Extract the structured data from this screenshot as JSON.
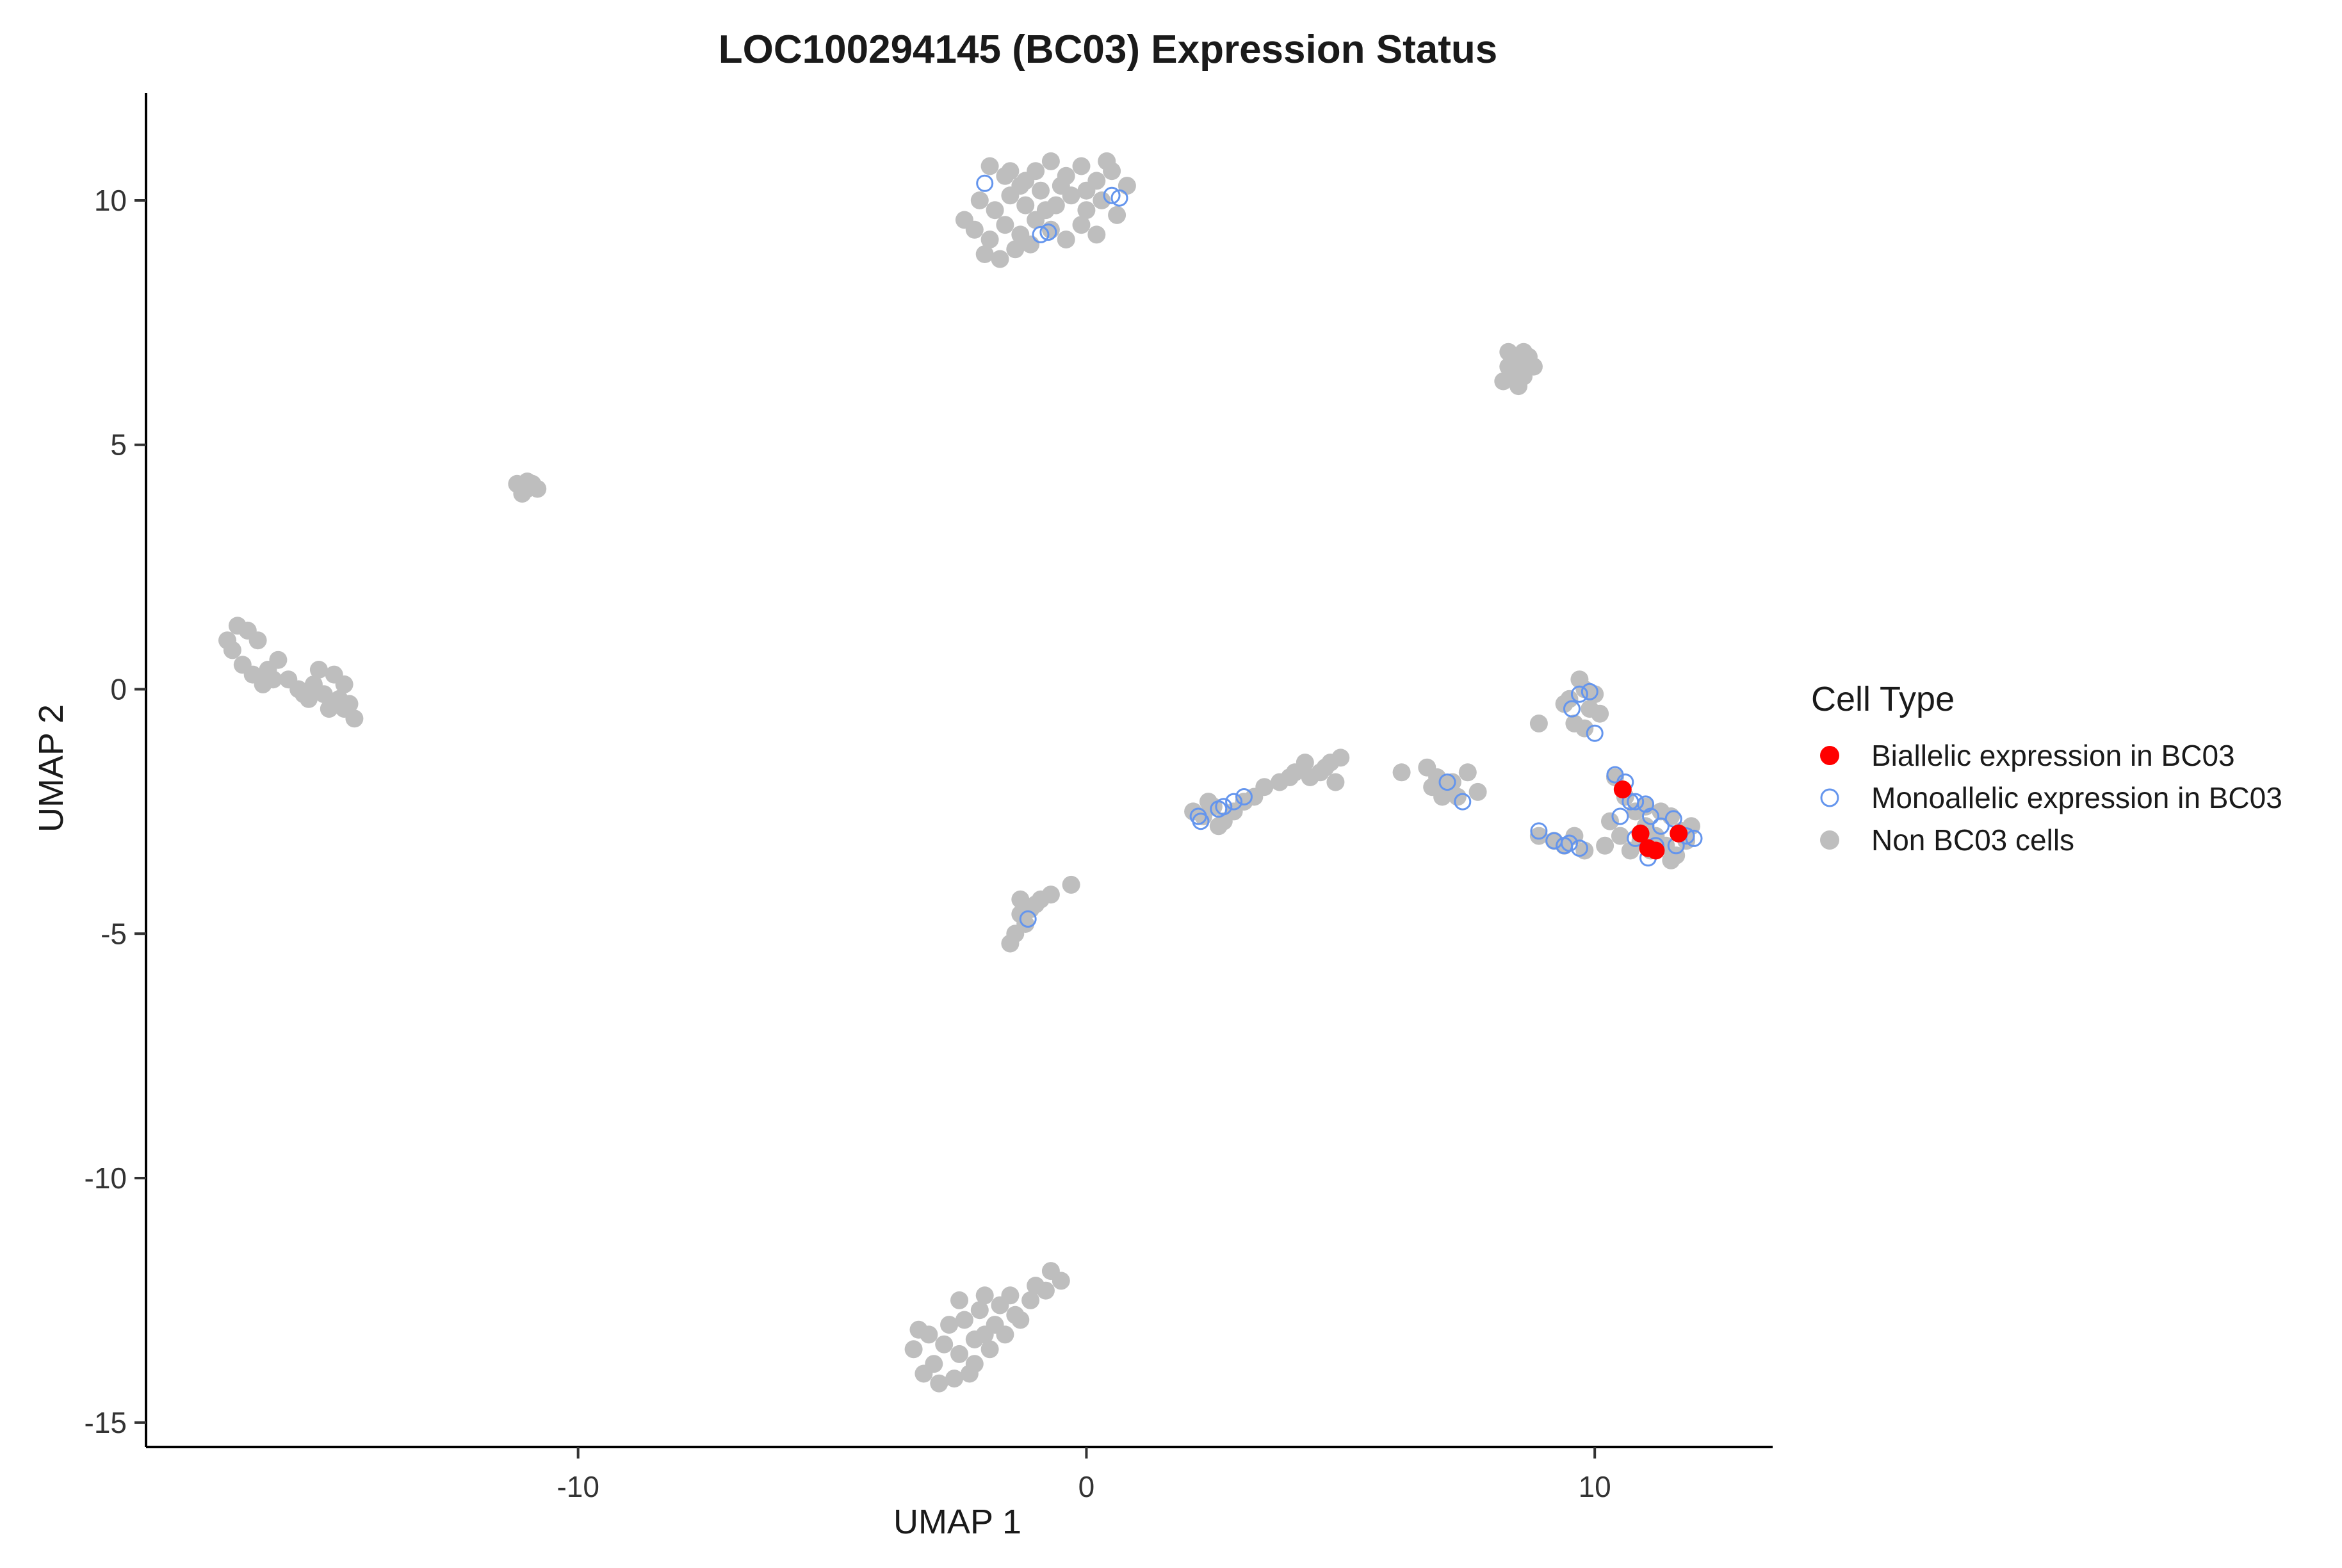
{
  "chart_data": {
    "type": "scatter",
    "title": "LOC100294145 (BC03) Expression Status",
    "xlabel": "UMAP 1",
    "ylabel": "UMAP 2",
    "xlim": [
      -18.5,
      13.5
    ],
    "ylim": [
      -15.5,
      12.2
    ],
    "xticks": [
      -10,
      0,
      10
    ],
    "xtick_labels": [
      "-10",
      "0",
      "10"
    ],
    "yticks": [
      -15,
      -10,
      -5,
      0,
      5,
      10
    ],
    "ytick_labels": [
      "-15",
      "-10",
      "-5",
      "0",
      "5",
      "10"
    ],
    "grid": false,
    "legend": {
      "title": "Cell Type",
      "placement": "right",
      "entries": [
        {
          "label": "Biallelic expression in BC03",
          "color": "#ff0000",
          "marker": "filled-circle"
        },
        {
          "label": "Monoallelic expression in BC03",
          "color": "#6495ed",
          "marker": "open-circle"
        },
        {
          "label": "Non BC03 cells",
          "color": "#bebebe",
          "marker": "filled-circle"
        }
      ]
    },
    "series": [
      {
        "name": "Non BC03 cells",
        "color": "#bebebe",
        "marker": "filled-circle",
        "points": [
          [
            -1.9,
            10.7
          ],
          [
            -1.6,
            10.5
          ],
          [
            -1.3,
            10.3
          ],
          [
            -1.0,
            10.6
          ],
          [
            -0.7,
            10.8
          ],
          [
            -0.4,
            10.5
          ],
          [
            -0.1,
            10.7
          ],
          [
            0.2,
            10.4
          ],
          [
            0.5,
            10.6
          ],
          [
            0.8,
            10.3
          ],
          [
            -2.1,
            10.0
          ],
          [
            -1.8,
            9.8
          ],
          [
            -1.5,
            10.1
          ],
          [
            -1.2,
            9.9
          ],
          [
            -0.9,
            10.2
          ],
          [
            -0.6,
            9.9
          ],
          [
            -0.3,
            10.1
          ],
          [
            0.0,
            9.8
          ],
          [
            0.3,
            10.0
          ],
          [
            0.6,
            9.7
          ],
          [
            -2.2,
            9.4
          ],
          [
            -1.9,
            9.2
          ],
          [
            -1.6,
            9.5
          ],
          [
            -1.3,
            9.3
          ],
          [
            -1.0,
            9.6
          ],
          [
            -0.7,
            9.4
          ],
          [
            -0.4,
            9.2
          ],
          [
            -0.1,
            9.5
          ],
          [
            0.2,
            9.3
          ],
          [
            -2.0,
            8.9
          ],
          [
            -1.7,
            8.8
          ],
          [
            -1.4,
            9.0
          ],
          [
            -1.1,
            9.1
          ],
          [
            -0.8,
            9.8
          ],
          [
            -0.5,
            10.3
          ],
          [
            -1.5,
            10.6
          ],
          [
            0.0,
            10.2
          ],
          [
            -1.2,
            10.4
          ],
          [
            0.4,
            10.8
          ],
          [
            -2.4,
            9.6
          ],
          [
            8.3,
            6.9
          ],
          [
            8.5,
            6.7
          ],
          [
            8.7,
            6.8
          ],
          [
            8.4,
            6.5
          ],
          [
            8.6,
            6.4
          ],
          [
            8.2,
            6.3
          ],
          [
            8.8,
            6.6
          ],
          [
            8.5,
            6.2
          ],
          [
            8.3,
            6.6
          ],
          [
            8.6,
            6.9
          ],
          [
            -11.2,
            4.2
          ],
          [
            -11.0,
            4.1
          ],
          [
            -10.9,
            4.2
          ],
          [
            -11.1,
            4.0
          ],
          [
            -10.8,
            4.1
          ],
          [
            -11.0,
            4.25
          ],
          [
            -16.9,
            1.0
          ],
          [
            -16.7,
            1.3
          ],
          [
            -16.5,
            1.2
          ],
          [
            -16.8,
            0.8
          ],
          [
            -16.3,
            1.0
          ],
          [
            -16.6,
            0.5
          ],
          [
            -16.4,
            0.3
          ],
          [
            -16.1,
            0.4
          ],
          [
            -15.9,
            0.6
          ],
          [
            -16.2,
            0.1
          ],
          [
            -15.7,
            0.2
          ],
          [
            -15.5,
            0.0
          ],
          [
            -15.2,
            0.1
          ],
          [
            -15.0,
            -0.1
          ],
          [
            -14.8,
            0.3
          ],
          [
            -14.7,
            -0.2
          ],
          [
            -14.5,
            -0.3
          ],
          [
            -15.3,
            -0.2
          ],
          [
            -14.9,
            -0.4
          ],
          [
            -14.6,
            0.1
          ],
          [
            -14.4,
            -0.6
          ],
          [
            -15.1,
            0.4
          ],
          [
            -16.0,
            0.2
          ],
          [
            -14.6,
            -0.4
          ],
          [
            -15.4,
            -0.1
          ],
          [
            -2.0,
            -12.4
          ],
          [
            -1.7,
            -12.6
          ],
          [
            -1.4,
            -12.8
          ],
          [
            -1.1,
            -12.5
          ],
          [
            -0.8,
            -12.3
          ],
          [
            -0.5,
            -12.1
          ],
          [
            -0.7,
            -11.9
          ],
          [
            -1.0,
            -12.2
          ],
          [
            -1.3,
            -12.9
          ],
          [
            -1.6,
            -13.2
          ],
          [
            -1.9,
            -13.5
          ],
          [
            -2.2,
            -13.8
          ],
          [
            -2.5,
            -13.6
          ],
          [
            -2.8,
            -13.4
          ],
          [
            -3.1,
            -13.2
          ],
          [
            -3.4,
            -13.5
          ],
          [
            -2.6,
            -14.1
          ],
          [
            -2.9,
            -14.2
          ],
          [
            -3.2,
            -14.0
          ],
          [
            -2.3,
            -14.0
          ],
          [
            -2.0,
            -13.2
          ],
          [
            -2.4,
            -12.9
          ],
          [
            -2.7,
            -13.0
          ],
          [
            -3.0,
            -13.8
          ],
          [
            -2.1,
            -12.7
          ],
          [
            -1.8,
            -13.0
          ],
          [
            -2.5,
            -12.5
          ],
          [
            -3.3,
            -13.1
          ],
          [
            -1.5,
            -12.4
          ],
          [
            -2.2,
            -13.3
          ],
          [
            -1.3,
            -4.3
          ],
          [
            -1.1,
            -4.5
          ],
          [
            -0.9,
            -4.3
          ],
          [
            -1.2,
            -4.8
          ],
          [
            -1.4,
            -5.0
          ],
          [
            -1.5,
            -5.2
          ],
          [
            -0.7,
            -4.2
          ],
          [
            -0.3,
            -4.0
          ],
          [
            -1.0,
            -4.4
          ],
          [
            -1.3,
            -4.6
          ],
          [
            2.1,
            -2.5
          ],
          [
            2.3,
            -2.6
          ],
          [
            2.5,
            -2.4
          ],
          [
            2.7,
            -2.7
          ],
          [
            2.9,
            -2.5
          ],
          [
            3.1,
            -2.3
          ],
          [
            3.5,
            -2.0
          ],
          [
            3.8,
            -1.9
          ],
          [
            4.1,
            -1.7
          ],
          [
            4.4,
            -1.8
          ],
          [
            4.7,
            -1.6
          ],
          [
            5.0,
            -1.4
          ],
          [
            4.9,
            -1.9
          ],
          [
            4.6,
            -1.7
          ],
          [
            4.3,
            -1.5
          ],
          [
            2.6,
            -2.8
          ],
          [
            3.3,
            -2.2
          ],
          [
            2.4,
            -2.3
          ],
          [
            4.0,
            -1.8
          ],
          [
            4.8,
            -1.5
          ],
          [
            6.2,
            -1.7
          ],
          [
            6.7,
            -1.6
          ],
          [
            6.9,
            -1.8
          ],
          [
            7.1,
            -2.0
          ],
          [
            7.3,
            -2.2
          ],
          [
            7.5,
            -1.7
          ],
          [
            7.7,
            -2.1
          ],
          [
            7.0,
            -2.2
          ],
          [
            7.2,
            -1.9
          ],
          [
            6.8,
            -2.0
          ],
          [
            9.5,
            -0.2
          ],
          [
            9.8,
            0.0
          ],
          [
            9.7,
            0.2
          ],
          [
            9.9,
            -0.4
          ],
          [
            10.1,
            -0.5
          ],
          [
            9.6,
            -0.7
          ],
          [
            9.8,
            -0.8
          ],
          [
            9.4,
            -0.3
          ],
          [
            10.0,
            -0.1
          ],
          [
            8.9,
            -0.7
          ],
          [
            10.4,
            -1.8
          ],
          [
            10.6,
            -2.2
          ],
          [
            10.8,
            -2.5
          ],
          [
            11.0,
            -2.8
          ],
          [
            11.2,
            -3.0
          ],
          [
            11.4,
            -3.2
          ],
          [
            11.6,
            -3.4
          ],
          [
            11.8,
            -3.1
          ],
          [
            11.5,
            -2.6
          ],
          [
            11.7,
            -2.9
          ],
          [
            10.9,
            -3.1
          ],
          [
            11.1,
            -3.3
          ],
          [
            10.5,
            -3.0
          ],
          [
            10.2,
            -3.2
          ],
          [
            11.3,
            -2.5
          ],
          [
            11.9,
            -2.8
          ],
          [
            10.7,
            -3.3
          ],
          [
            11.5,
            -3.5
          ],
          [
            10.3,
            -2.7
          ],
          [
            11.0,
            -2.4
          ],
          [
            8.9,
            -3.0
          ],
          [
            9.2,
            -3.1
          ],
          [
            9.4,
            -3.2
          ],
          [
            9.6,
            -3.0
          ],
          [
            9.8,
            -3.3
          ]
        ]
      },
      {
        "name": "Monoallelic expression in BC03",
        "color": "#6495ed",
        "marker": "open-circle",
        "points": [
          [
            -2.0,
            10.35
          ],
          [
            0.5,
            10.1
          ],
          [
            0.65,
            10.05
          ],
          [
            -0.9,
            9.3
          ],
          [
            -0.75,
            9.35
          ],
          [
            -1.15,
            -4.7
          ],
          [
            2.2,
            -2.6
          ],
          [
            2.25,
            -2.7
          ],
          [
            2.6,
            -2.45
          ],
          [
            2.7,
            -2.4
          ],
          [
            2.9,
            -2.3
          ],
          [
            3.1,
            -2.2
          ],
          [
            7.4,
            -2.3
          ],
          [
            7.1,
            -1.9
          ],
          [
            9.7,
            -0.1
          ],
          [
            9.9,
            -0.05
          ],
          [
            10.0,
            -0.9
          ],
          [
            9.55,
            -0.4
          ],
          [
            8.9,
            -2.9
          ],
          [
            9.2,
            -3.1
          ],
          [
            9.4,
            -3.2
          ],
          [
            9.5,
            -3.15
          ],
          [
            9.7,
            -3.25
          ],
          [
            10.4,
            -1.75
          ],
          [
            10.6,
            -1.9
          ],
          [
            10.7,
            -2.3
          ],
          [
            10.5,
            -2.6
          ],
          [
            10.8,
            -2.3
          ],
          [
            11.0,
            -2.35
          ],
          [
            11.1,
            -2.6
          ],
          [
            11.3,
            -2.8
          ],
          [
            11.55,
            -2.65
          ],
          [
            11.8,
            -3.0
          ],
          [
            11.95,
            -3.05
          ],
          [
            11.6,
            -3.2
          ],
          [
            11.05,
            -3.45
          ],
          [
            10.8,
            -3.05
          ],
          [
            11.2,
            -3.2
          ]
        ]
      },
      {
        "name": "Biallelic expression in BC03",
        "color": "#ff0000",
        "marker": "filled-circle",
        "points": [
          [
            10.55,
            -2.05
          ],
          [
            10.9,
            -2.95
          ],
          [
            11.05,
            -3.25
          ],
          [
            11.2,
            -3.3
          ],
          [
            11.65,
            -2.95
          ]
        ]
      }
    ]
  }
}
